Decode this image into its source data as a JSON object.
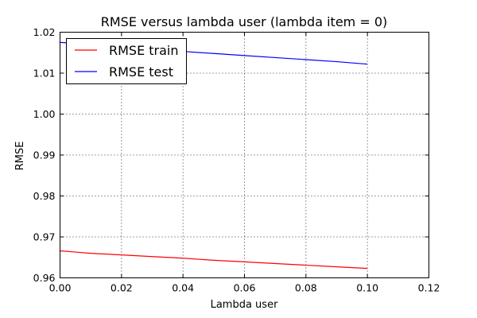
{
  "chart_data": {
    "type": "line",
    "title": "RMSE versus lambda user (lambda item = 0)",
    "xlabel": "Lambda user",
    "ylabel": "RMSE",
    "xlim": [
      0.0,
      0.12
    ],
    "ylim": [
      0.96,
      1.02
    ],
    "xticks": [
      0.0,
      0.02,
      0.04,
      0.06,
      0.08,
      0.1,
      0.12
    ],
    "xtick_labels": [
      "0.00",
      "0.02",
      "0.04",
      "0.06",
      "0.08",
      "0.10",
      "0.12"
    ],
    "yticks": [
      0.96,
      0.97,
      0.98,
      0.99,
      1.0,
      1.01,
      1.02
    ],
    "ytick_labels": [
      "0.96",
      "0.97",
      "0.98",
      "0.99",
      "1.00",
      "1.01",
      "1.02"
    ],
    "grid": true,
    "legend": "top-left",
    "series": [
      {
        "name": "RMSE train",
        "color": "#ff0000",
        "x": [
          0.0,
          0.005,
          0.01,
          0.02,
          0.03,
          0.04,
          0.05,
          0.06,
          0.07,
          0.08,
          0.09,
          0.1
        ],
        "y": [
          0.9666,
          0.9663,
          0.966,
          0.9656,
          0.9652,
          0.9648,
          0.9643,
          0.9639,
          0.9635,
          0.9631,
          0.9627,
          0.9623
        ]
      },
      {
        "name": "RMSE test",
        "color": "#0000ff",
        "x": [
          0.0,
          0.005,
          0.01,
          0.02,
          0.03,
          0.04,
          0.05,
          0.06,
          0.07,
          0.08,
          0.09,
          0.1
        ],
        "y": [
          1.0175,
          1.0173,
          1.0169,
          1.0164,
          1.0158,
          1.0153,
          1.0148,
          1.0143,
          1.0138,
          1.0133,
          1.0128,
          1.0122
        ]
      }
    ]
  }
}
